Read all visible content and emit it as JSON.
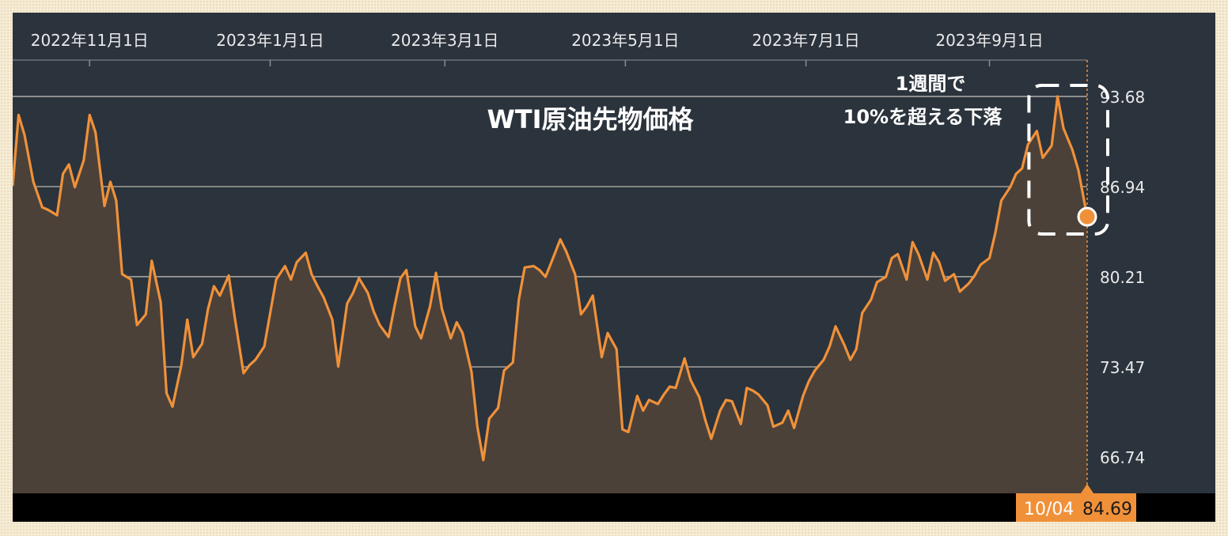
{
  "chart_data": {
    "type": "area",
    "title": "WTI原油先物価格",
    "annotation": [
      "1週間で",
      "10%を超える下落"
    ],
    "x_tick_labels": [
      "2022年11月1日",
      "2023年1月1日",
      "2023年3月1日",
      "2023年5月1日",
      "2023年7月1日",
      "2023年9月1日"
    ],
    "y_tick_labels": [
      "93.68",
      "86.94",
      "80.21",
      "73.47",
      "66.74"
    ],
    "y_ticks": [
      93.68,
      86.94,
      80.21,
      73.47,
      66.74
    ],
    "ylim": [
      63.6,
      95.5
    ],
    "x_range": [
      "2022-10-06",
      "2023-10-04"
    ],
    "x": [
      "2022-10-06",
      "2022-10-08",
      "2022-10-10",
      "2022-10-13",
      "2022-10-16",
      "2022-10-18",
      "2022-10-21",
      "2022-10-23",
      "2022-10-25",
      "2022-10-27",
      "2022-10-30",
      "2022-11-01",
      "2022-11-03",
      "2022-11-06",
      "2022-11-08",
      "2022-11-10",
      "2022-11-12",
      "2022-11-15",
      "2022-11-17",
      "2022-11-20",
      "2022-11-22",
      "2022-11-25",
      "2022-11-27",
      "2022-11-29",
      "2022-12-02",
      "2022-12-04",
      "2022-12-06",
      "2022-12-09",
      "2022-12-11",
      "2022-12-13",
      "2022-12-15",
      "2022-12-18",
      "2022-12-20",
      "2022-12-23",
      "2022-12-25",
      "2022-12-27",
      "2022-12-30",
      "2023-01-01",
      "2023-01-03",
      "2023-01-06",
      "2023-01-08",
      "2023-01-10",
      "2023-01-13",
      "2023-01-15",
      "2023-01-17",
      "2023-01-19",
      "2023-01-22",
      "2023-01-24",
      "2023-01-27",
      "2023-01-29",
      "2023-01-31",
      "2023-02-03",
      "2023-02-05",
      "2023-02-07",
      "2023-02-10",
      "2023-02-12",
      "2023-02-14",
      "2023-02-16",
      "2023-02-19",
      "2023-02-21",
      "2023-02-24",
      "2023-02-26",
      "2023-02-28",
      "2023-03-03",
      "2023-03-05",
      "2023-03-07",
      "2023-03-10",
      "2023-03-12",
      "2023-03-14",
      "2023-03-16",
      "2023-03-19",
      "2023-03-21",
      "2023-03-24",
      "2023-03-26",
      "2023-03-28",
      "2023-03-31",
      "2023-04-02",
      "2023-04-04",
      "2023-04-06",
      "2023-04-09",
      "2023-04-11",
      "2023-04-14",
      "2023-04-16",
      "2023-04-18",
      "2023-04-20",
      "2023-04-23",
      "2023-04-25",
      "2023-04-28",
      "2023-04-30",
      "2023-05-02",
      "2023-05-05",
      "2023-05-07",
      "2023-05-09",
      "2023-05-12",
      "2023-05-14",
      "2023-05-16",
      "2023-05-18",
      "2023-05-21",
      "2023-05-23",
      "2023-05-26",
      "2023-05-28",
      "2023-05-30",
      "2023-06-02",
      "2023-06-04",
      "2023-06-06",
      "2023-06-09",
      "2023-06-11",
      "2023-06-13",
      "2023-06-15",
      "2023-06-18",
      "2023-06-20",
      "2023-06-23",
      "2023-06-25",
      "2023-06-27",
      "2023-06-30",
      "2023-07-02",
      "2023-07-04",
      "2023-07-07",
      "2023-07-09",
      "2023-07-11",
      "2023-07-14",
      "2023-07-16",
      "2023-07-18",
      "2023-07-20",
      "2023-07-23",
      "2023-07-25",
      "2023-07-28",
      "2023-07-30",
      "2023-08-01",
      "2023-08-04",
      "2023-08-06",
      "2023-08-08",
      "2023-08-11",
      "2023-08-13",
      "2023-08-15",
      "2023-08-17",
      "2023-08-20",
      "2023-08-22",
      "2023-08-25",
      "2023-08-27",
      "2023-08-29",
      "2023-09-01",
      "2023-09-03",
      "2023-09-05",
      "2023-09-08",
      "2023-09-10",
      "2023-09-12",
      "2023-09-14",
      "2023-09-17",
      "2023-09-19",
      "2023-09-22",
      "2023-09-24",
      "2023-09-26",
      "2023-09-29",
      "2023-10-01",
      "2023-10-04"
    ],
    "series": [
      {
        "values": [
          87.0,
          92.3,
          90.8,
          87.3,
          85.4,
          85.2,
          84.8,
          87.9,
          88.6,
          86.9,
          88.9,
          92.3,
          91.0,
          85.5,
          87.3,
          85.9,
          80.4,
          80.0,
          76.6,
          77.4,
          81.4,
          78.3,
          71.5,
          70.5,
          73.6,
          77.0,
          74.2,
          75.2,
          77.8,
          79.5,
          78.8,
          80.3,
          77.2,
          73.0,
          73.6,
          74.0,
          75.0,
          77.5,
          80.0,
          81.0,
          80.0,
          81.3,
          82.0,
          80.4,
          79.5,
          78.7,
          77.0,
          73.5,
          78.2,
          79.0,
          80.1,
          79.0,
          77.6,
          76.6,
          75.7,
          78.0,
          80.1,
          80.7,
          76.5,
          75.6,
          78.0,
          80.5,
          77.8,
          75.6,
          76.8,
          76.0,
          73.1,
          69.0,
          66.5,
          69.6,
          70.4,
          73.2,
          73.8,
          78.5,
          80.9,
          81.0,
          80.7,
          80.2,
          81.3,
          83.0,
          82.1,
          80.4,
          77.4,
          78.0,
          78.8,
          74.2,
          76.0,
          74.8,
          68.8,
          68.6,
          71.3,
          70.2,
          71.0,
          70.7,
          71.4,
          72.0,
          71.9,
          74.1,
          72.5,
          71.2,
          69.5,
          68.1,
          70.2,
          71.0,
          70.9,
          69.2,
          71.9,
          71.7,
          71.4,
          70.6,
          69.0,
          69.3,
          70.2,
          68.9,
          71.3,
          72.4,
          73.2,
          74.0,
          75.0,
          76.5,
          75.1,
          74.0,
          74.8,
          77.5,
          78.5,
          79.8,
          80.2,
          81.6,
          81.9,
          80.0,
          82.8,
          81.9,
          80.0,
          82.0,
          81.3,
          79.9,
          80.4,
          79.1,
          79.7,
          80.3,
          81.1,
          81.6,
          83.5,
          85.9,
          86.9,
          87.9,
          88.3,
          90.1,
          91.1,
          89.1,
          90.0,
          93.68,
          91.3,
          89.7,
          88.2,
          84.69
        ]
      }
    ],
    "last_point": {
      "date": "10/04",
      "value": "84.69"
    },
    "colors": {
      "line": "#f0913a",
      "area": "#4b4139",
      "background": "#2b333c",
      "footer": "#000000",
      "grid": "#c9c4bd",
      "text": "#eaeaea",
      "marker": "#f0913a"
    }
  }
}
